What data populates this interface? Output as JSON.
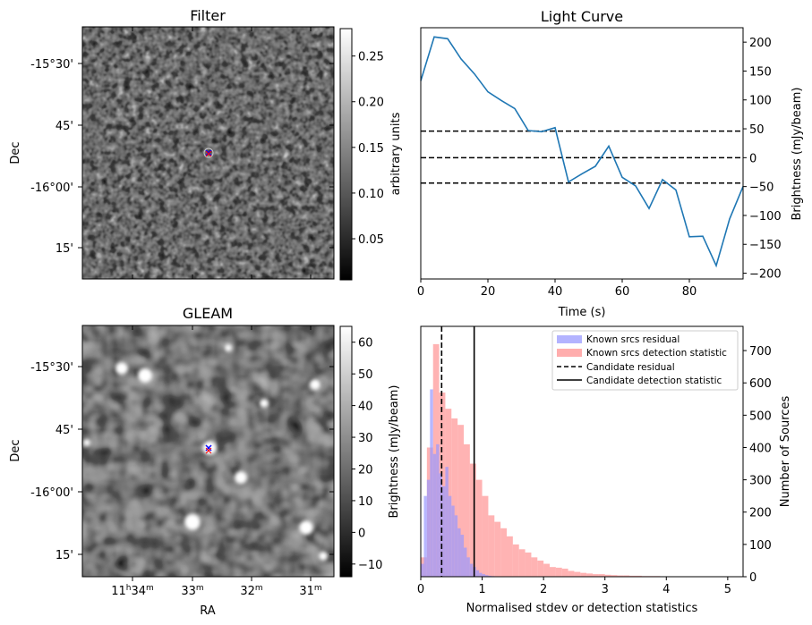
{
  "filter": {
    "title": "Filter",
    "ylabel": "Dec",
    "dec_ticks": [
      "-15°30'",
      "45'",
      "-16°00'",
      "15'"
    ],
    "colorbar_label": "arbitrary units",
    "colorbar_ticks": [
      "0.25",
      "0.20",
      "0.15",
      "0.10",
      "0.05"
    ],
    "colorbar_values": [
      0.25,
      0.2,
      0.15,
      0.1,
      0.05
    ],
    "colorbar_range": [
      0.005,
      0.28
    ]
  },
  "gleam": {
    "title": "GLEAM",
    "ylabel": "Dec",
    "xlabel": "RA",
    "dec_ticks": [
      "-15°30'",
      "45'",
      "-16°00'",
      "15'"
    ],
    "ra_ticks": [
      {
        "h": "11",
        "hu": "h",
        "m": "34",
        "mu": "m"
      },
      {
        "h": "",
        "hu": "",
        "m": "33",
        "mu": "m"
      },
      {
        "h": "",
        "hu": "",
        "m": "32",
        "mu": "m"
      },
      {
        "h": "",
        "hu": "",
        "m": "31",
        "mu": "m"
      }
    ],
    "colorbar_label": "Brightness (mJy/beam)",
    "colorbar_ticks": [
      "60",
      "50",
      "40",
      "30",
      "20",
      "10",
      "0",
      "−10"
    ],
    "colorbar_values": [
      60,
      50,
      40,
      30,
      20,
      10,
      0,
      -10
    ],
    "colorbar_range": [
      -14,
      65
    ]
  },
  "light_curve": {
    "title": "Light Curve",
    "xlabel": "Time (s)",
    "ylabel": "Brightness (mJy/beam)",
    "x_tick_labels": [
      "0",
      "20",
      "40",
      "60",
      "80"
    ],
    "y_tick_labels": [
      "200",
      "150",
      "100",
      "50",
      "0",
      "−50",
      "−100",
      "−150",
      "−200"
    ],
    "color": "#1f77b4"
  },
  "histogram": {
    "xlabel": "Normalised stdev or detection statistics",
    "ylabel": "Number of Sources",
    "x_tick_labels": [
      "0",
      "1",
      "2",
      "3",
      "4",
      "5"
    ],
    "y_tick_labels": [
      "700",
      "600",
      "500",
      "400",
      "300",
      "200",
      "100",
      "0"
    ],
    "legend": [
      {
        "label": "Known srcs residual",
        "color": "#9999ff",
        "kind": "patch"
      },
      {
        "label": "Known srcs detection statistic",
        "color": "#ff9999",
        "kind": "patch"
      },
      {
        "label": "Candidate residual",
        "color": "#000000",
        "kind": "dashed"
      },
      {
        "label": "Candidate detection statistic",
        "color": "#000000",
        "kind": "solid"
      }
    ]
  },
  "chart_data": [
    {
      "type": "line",
      "title": "Light Curve",
      "xlabel": "Time (s)",
      "ylabel": "Brightness (mJy/beam)",
      "xlim": [
        0,
        96
      ],
      "ylim": [
        -210,
        225
      ],
      "series": [
        {
          "x": [
            0,
            4,
            8,
            12,
            16,
            20,
            24,
            28,
            32,
            36,
            40,
            44,
            48,
            52,
            56,
            60,
            64,
            68,
            72,
            76,
            80,
            84,
            88,
            92,
            96
          ],
          "values": [
            133,
            209,
            206,
            171,
            145,
            114,
            99,
            85,
            47,
            45,
            52,
            -42,
            -28,
            -15,
            20,
            -34,
            -49,
            -88,
            -38,
            -56,
            -137,
            -136,
            -187,
            -106,
            -50
          ]
        }
      ],
      "hlines": [
        {
          "y": 46,
          "style": "dashed"
        },
        {
          "y": 0,
          "style": "dashed"
        },
        {
          "y": -44,
          "style": "dashed"
        }
      ]
    },
    {
      "type": "bar",
      "xlabel": "Normalised stdev or detection statistics",
      "ylabel": "Number of Sources",
      "xlim": [
        0,
        5.25
      ],
      "ylim": [
        0,
        775
      ],
      "bin_width": 0.1,
      "series": [
        {
          "name": "Known srcs detection statistic",
          "color": "#ff9999",
          "bin_starts": [
            0.0,
            0.1,
            0.2,
            0.3,
            0.4,
            0.5,
            0.6,
            0.7,
            0.8,
            0.9,
            1.0,
            1.1,
            1.2,
            1.3,
            1.4,
            1.5,
            1.6,
            1.7,
            1.8,
            1.9,
            2.0,
            2.1,
            2.2,
            2.3,
            2.4,
            2.5,
            2.6,
            2.7,
            2.8,
            2.9,
            3.0,
            3.1,
            3.2,
            3.3,
            3.4,
            3.5,
            3.6,
            3.7,
            3.8,
            3.9,
            4.0,
            4.1,
            4.2,
            4.3,
            4.4,
            4.5,
            4.6,
            4.7,
            4.8,
            4.9,
            5.0
          ],
          "values": [
            60,
            400,
            720,
            570,
            520,
            490,
            470,
            410,
            350,
            300,
            250,
            190,
            170,
            150,
            125,
            100,
            85,
            75,
            60,
            50,
            40,
            30,
            28,
            25,
            18,
            15,
            12,
            10,
            8,
            8,
            6,
            5,
            4,
            4,
            3,
            3,
            2,
            2,
            2,
            1,
            1,
            1,
            1,
            0,
            0,
            0,
            0,
            0,
            0,
            0,
            1
          ]
        },
        {
          "name": "Known srcs residual",
          "color": "#9999ff",
          "bin_starts": [
            0.0,
            0.05,
            0.1,
            0.15,
            0.2,
            0.25,
            0.3,
            0.35,
            0.4,
            0.45,
            0.5,
            0.55,
            0.6,
            0.65,
            0.7,
            0.75,
            0.8,
            0.85,
            0.9,
            0.95,
            1.0,
            1.05,
            1.1,
            1.15,
            1.2
          ],
          "values": [
            40,
            250,
            300,
            580,
            380,
            410,
            320,
            280,
            340,
            250,
            220,
            190,
            150,
            130,
            90,
            60,
            40,
            30,
            20,
            12,
            8,
            5,
            3,
            2,
            1
          ]
        }
      ],
      "vlines": [
        {
          "name": "Candidate residual",
          "x": 0.34,
          "style": "dashed"
        },
        {
          "name": "Candidate detection statistic",
          "x": 0.87,
          "style": "solid"
        }
      ]
    }
  ]
}
